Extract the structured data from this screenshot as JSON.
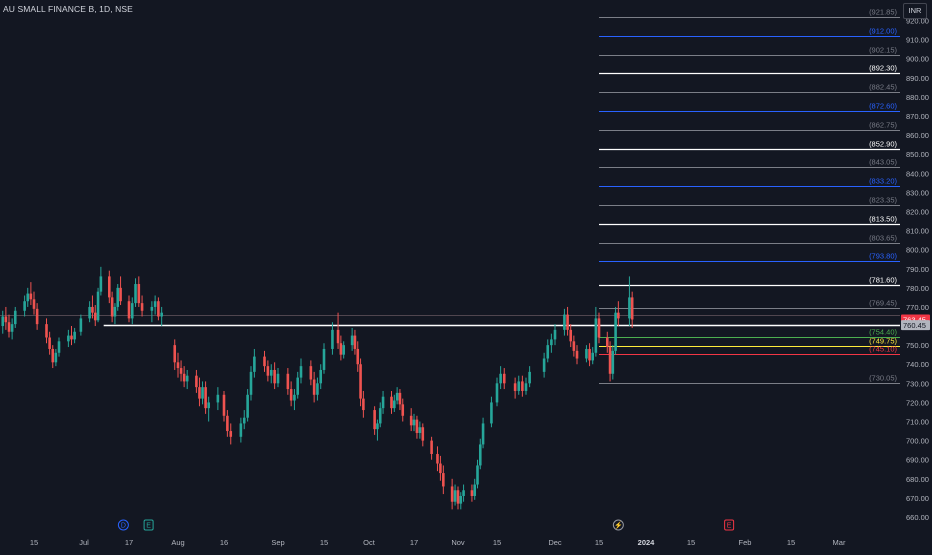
{
  "header": {
    "symbol_title": "AU SMALL FINANCE B, 1D, NSE",
    "currency": "INR"
  },
  "colors": {
    "background": "#131722",
    "up": "#26a69a",
    "down": "#ef5350",
    "axis_text": "#b2b5be",
    "grid_label": "#787b86",
    "gray_level": "#9598a1",
    "white_level": "#ffffff",
    "blue_level": "#2962ff",
    "green_level": "#4caf50",
    "yellow_level": "#ffeb3b",
    "red_level": "#f23645",
    "price_tag": "#f23645",
    "crosshair_tag": "#b2b5be"
  },
  "chart_data": {
    "type": "candlestick",
    "ylim": [
      654,
      927
    ],
    "y_ticks": [
      660,
      670,
      680,
      690,
      700,
      710,
      720,
      730,
      740,
      750,
      760,
      770,
      780,
      790,
      800,
      810,
      820,
      830,
      840,
      850,
      860,
      870,
      880,
      890,
      900,
      910,
      920
    ],
    "x_ticks": [
      "15",
      "Jul",
      "17",
      "Aug",
      "16",
      "Sep",
      "15",
      "Oct",
      "17",
      "Nov",
      "15",
      "Dec",
      "15",
      "2024",
      "15",
      "Feb",
      "15",
      "Mar"
    ],
    "x_ticks_bold": [
      "2024"
    ],
    "event_markers": [
      {
        "label": "D",
        "date": "2023-07-15"
      },
      {
        "label": "E",
        "date": "2023-07-23"
      },
      {
        "label": "⚡",
        "date": "2023-12-22"
      },
      {
        "label": "E",
        "date": "2024-01-27"
      }
    ],
    "last_price": 763.45,
    "crosshair_price": 760.45,
    "levels": [
      {
        "price": 921.85,
        "style": "gray"
      },
      {
        "price": 912.0,
        "style": "blue"
      },
      {
        "price": 902.15,
        "style": "gray"
      },
      {
        "price": 892.3,
        "style": "white"
      },
      {
        "price": 882.45,
        "style": "gray"
      },
      {
        "price": 872.6,
        "style": "blue"
      },
      {
        "price": 862.75,
        "style": "gray"
      },
      {
        "price": 852.9,
        "style": "white"
      },
      {
        "price": 843.05,
        "style": "gray"
      },
      {
        "price": 833.2,
        "style": "blue"
      },
      {
        "price": 823.35,
        "style": "gray"
      },
      {
        "price": 813.5,
        "style": "white"
      },
      {
        "price": 803.65,
        "style": "gray"
      },
      {
        "price": 793.8,
        "style": "blue"
      },
      {
        "price": 781.6,
        "style": "white"
      },
      {
        "price": 769.45,
        "style": "gray"
      },
      {
        "price": 754.4,
        "style": "green"
      },
      {
        "price": 749.75,
        "style": "yellow"
      },
      {
        "price": 745.1,
        "style": "red"
      },
      {
        "price": 730.05,
        "style": "gray"
      }
    ],
    "support_line": {
      "price": 760.45,
      "from_date": "2023-07-08"
    },
    "faint_line": {
      "price": 765.8
    },
    "candles": [
      [
        "2023-06-01",
        751,
        757,
        748,
        755
      ],
      [
        "2023-06-02",
        755,
        763,
        752,
        760
      ],
      [
        "2023-06-05",
        760,
        768,
        756,
        765
      ],
      [
        "2023-06-06",
        765,
        770,
        758,
        762
      ],
      [
        "2023-06-07",
        762,
        766,
        754,
        757
      ],
      [
        "2023-06-08",
        757,
        764,
        753,
        761
      ],
      [
        "2023-06-09",
        761,
        770,
        759,
        768
      ],
      [
        "2023-06-12",
        768,
        776,
        765,
        773
      ],
      [
        "2023-06-13",
        773,
        780,
        770,
        777
      ],
      [
        "2023-06-14",
        777,
        783,
        771,
        774
      ],
      [
        "2023-06-15",
        774,
        778,
        766,
        769
      ],
      [
        "2023-06-16",
        769,
        772,
        758,
        761
      ],
      [
        "2023-06-19",
        761,
        764,
        751,
        754
      ],
      [
        "2023-06-20",
        754,
        757,
        745,
        748
      ],
      [
        "2023-06-21",
        748,
        750,
        738,
        741
      ],
      [
        "2023-06-22",
        741,
        748,
        739,
        746
      ],
      [
        "2023-06-23",
        746,
        754,
        744,
        752
      ],
      [
        "2023-06-26",
        752,
        758,
        749,
        755
      ],
      [
        "2023-06-27",
        755,
        760,
        750,
        753
      ],
      [
        "2023-06-28",
        753,
        759,
        751,
        757
      ],
      [
        "2023-06-30",
        757,
        766,
        755,
        764
      ],
      [
        "2023-07-03",
        764,
        773,
        762,
        770
      ],
      [
        "2023-07-04",
        770,
        776,
        764,
        767
      ],
      [
        "2023-07-05",
        767,
        771,
        760,
        763
      ],
      [
        "2023-07-06",
        763,
        780,
        762,
        778
      ],
      [
        "2023-07-07",
        778,
        791,
        776,
        786
      ],
      [
        "2023-07-10",
        786,
        789,
        772,
        775
      ],
      [
        "2023-07-11",
        775,
        778,
        762,
        765
      ],
      [
        "2023-07-12",
        765,
        772,
        761,
        770
      ],
      [
        "2023-07-13",
        770,
        782,
        768,
        780
      ],
      [
        "2023-07-14",
        780,
        786,
        771,
        773
      ],
      [
        "2023-07-17",
        773,
        776,
        762,
        764
      ],
      [
        "2023-07-18",
        764,
        775,
        761,
        772
      ],
      [
        "2023-07-19",
        772,
        785,
        770,
        782
      ],
      [
        "2023-07-20",
        782,
        786,
        770,
        772
      ],
      [
        "2023-07-21",
        772,
        776,
        765,
        768
      ],
      [
        "2023-07-24",
        768,
        773,
        762,
        770
      ],
      [
        "2023-07-25",
        770,
        776,
        766,
        773
      ],
      [
        "2023-07-26",
        773,
        775,
        763,
        765
      ],
      [
        "2023-07-27",
        765,
        770,
        760,
        767
      ],
      [
        "2023-07-31",
        750,
        753,
        737,
        741
      ],
      [
        "2023-08-01",
        741,
        746,
        733,
        738
      ],
      [
        "2023-08-02",
        738,
        742,
        731,
        735
      ],
      [
        "2023-08-03",
        735,
        739,
        728,
        731
      ],
      [
        "2023-08-04",
        731,
        737,
        727,
        734
      ],
      [
        "2023-08-07",
        734,
        737,
        725,
        728
      ],
      [
        "2023-08-08",
        728,
        733,
        718,
        722
      ],
      [
        "2023-08-09",
        722,
        731,
        719,
        728
      ],
      [
        "2023-08-10",
        728,
        731,
        714,
        717
      ],
      [
        "2023-08-11",
        717,
        723,
        710,
        720
      ],
      [
        "2023-08-14",
        720,
        728,
        716,
        724
      ],
      [
        "2023-08-16",
        724,
        726,
        710,
        713
      ],
      [
        "2023-08-17",
        713,
        716,
        702,
        705
      ],
      [
        "2023-08-18",
        705,
        709,
        698,
        702
      ],
      [
        "2023-08-21",
        702,
        712,
        699,
        709
      ],
      [
        "2023-08-22",
        709,
        716,
        706,
        712
      ],
      [
        "2023-08-23",
        712,
        727,
        710,
        724
      ],
      [
        "2023-08-24",
        724,
        739,
        721,
        736
      ],
      [
        "2023-08-25",
        736,
        748,
        733,
        744
      ],
      [
        "2023-08-28",
        744,
        747,
        736,
        739
      ],
      [
        "2023-08-29",
        739,
        742,
        731,
        734
      ],
      [
        "2023-08-30",
        734,
        740,
        730,
        737
      ],
      [
        "2023-08-31",
        737,
        741,
        727,
        730
      ],
      [
        "2023-09-01",
        730,
        738,
        728,
        735
      ],
      [
        "2023-09-04",
        735,
        738,
        724,
        727
      ],
      [
        "2023-09-05",
        727,
        731,
        718,
        721
      ],
      [
        "2023-09-06",
        721,
        727,
        716,
        724
      ],
      [
        "2023-09-07",
        724,
        736,
        722,
        733
      ],
      [
        "2023-09-08",
        733,
        743,
        730,
        739
      ],
      [
        "2023-09-11",
        739,
        742,
        729,
        732
      ],
      [
        "2023-09-12",
        732,
        736,
        720,
        724
      ],
      [
        "2023-09-13",
        724,
        733,
        721,
        730
      ],
      [
        "2023-09-14",
        730,
        740,
        727,
        737
      ],
      [
        "2023-09-15",
        737,
        751,
        735,
        748
      ],
      [
        "2023-09-18",
        748,
        762,
        745,
        758
      ],
      [
        "2023-09-20",
        758,
        767,
        748,
        751
      ],
      [
        "2023-09-21",
        751,
        755,
        742,
        745
      ],
      [
        "2023-09-22",
        745,
        752,
        743,
        750
      ],
      [
        "2023-09-25",
        750,
        759,
        747,
        755
      ],
      [
        "2023-09-26",
        755,
        758,
        745,
        748
      ],
      [
        "2023-09-27",
        748,
        752,
        736,
        740
      ],
      [
        "2023-09-28",
        740,
        743,
        718,
        722
      ],
      [
        "2023-09-29",
        722,
        726,
        712,
        716
      ],
      [
        "2023-10-03",
        716,
        718,
        703,
        706
      ],
      [
        "2023-10-04",
        706,
        711,
        700,
        709
      ],
      [
        "2023-10-05",
        709,
        720,
        707,
        717
      ],
      [
        "2023-10-06",
        717,
        726,
        714,
        723
      ],
      [
        "2023-10-09",
        723,
        726,
        714,
        717
      ],
      [
        "2023-10-10",
        717,
        724,
        715,
        721
      ],
      [
        "2023-10-11",
        721,
        728,
        719,
        725
      ],
      [
        "2023-10-12",
        725,
        727,
        716,
        719
      ],
      [
        "2023-10-13",
        719,
        722,
        710,
        713
      ],
      [
        "2023-10-16",
        713,
        717,
        705,
        708
      ],
      [
        "2023-10-17",
        708,
        714,
        705,
        711
      ],
      [
        "2023-10-18",
        711,
        713,
        701,
        704
      ],
      [
        "2023-10-19",
        704,
        710,
        701,
        707
      ],
      [
        "2023-10-20",
        707,
        709,
        697,
        700
      ],
      [
        "2023-10-23",
        700,
        702,
        690,
        693
      ],
      [
        "2023-10-25",
        693,
        697,
        684,
        688
      ],
      [
        "2023-10-26",
        688,
        692,
        679,
        683
      ],
      [
        "2023-10-27",
        683,
        687,
        672,
        676
      ],
      [
        "2023-10-30",
        676,
        680,
        664,
        668
      ],
      [
        "2023-10-31",
        668,
        677,
        666,
        674
      ],
      [
        "2023-11-01",
        674,
        676,
        664,
        667
      ],
      [
        "2023-11-02",
        667,
        673,
        664,
        671
      ],
      [
        "2023-11-03",
        671,
        677,
        668,
        674
      ],
      [
        "2023-11-06",
        674,
        677,
        668,
        671
      ],
      [
        "2023-11-07",
        671,
        680,
        669,
        677
      ],
      [
        "2023-11-08",
        677,
        690,
        675,
        687
      ],
      [
        "2023-11-09",
        687,
        701,
        685,
        698
      ],
      [
        "2023-11-10",
        698,
        712,
        696,
        709
      ],
      [
        "2023-11-13",
        709,
        723,
        707,
        720
      ],
      [
        "2023-11-15",
        720,
        733,
        718,
        730
      ],
      [
        "2023-11-16",
        730,
        739,
        727,
        735
      ],
      [
        "2023-11-17",
        735,
        738,
        727,
        730
      ],
      [
        "2023-11-20",
        730,
        733,
        722,
        726
      ],
      [
        "2023-11-21",
        726,
        734,
        724,
        731
      ],
      [
        "2023-11-22",
        731,
        734,
        723,
        726
      ],
      [
        "2023-11-23",
        726,
        733,
        724,
        730
      ],
      [
        "2023-11-24",
        730,
        739,
        728,
        736
      ],
      [
        "2023-11-28",
        736,
        746,
        733,
        743
      ],
      [
        "2023-11-29",
        743,
        753,
        741,
        750
      ],
      [
        "2023-11-30",
        750,
        756,
        746,
        753
      ],
      [
        "2023-12-01",
        753,
        761,
        750,
        758
      ],
      [
        "2023-12-04",
        758,
        769,
        755,
        766
      ],
      [
        "2023-12-05",
        766,
        770,
        755,
        758
      ],
      [
        "2023-12-06",
        758,
        761,
        749,
        752
      ],
      [
        "2023-12-07",
        752,
        755,
        744,
        747
      ],
      [
        "2023-12-08",
        747,
        750,
        740,
        743
      ],
      [
        "2023-12-11",
        743,
        750,
        741,
        748
      ],
      [
        "2023-12-12",
        748,
        751,
        739,
        742
      ],
      [
        "2023-12-13",
        742,
        749,
        740,
        746
      ],
      [
        "2023-12-14",
        746,
        770,
        744,
        764
      ],
      [
        "2023-12-15",
        764,
        767,
        751,
        754
      ],
      [
        "2023-12-18",
        754,
        757,
        746,
        749
      ],
      [
        "2023-12-19",
        749,
        752,
        731,
        735
      ],
      [
        "2023-12-20",
        735,
        750,
        732,
        747
      ],
      [
        "2023-12-21",
        747,
        770,
        745,
        767
      ],
      [
        "2023-12-22",
        767,
        773,
        760,
        764
      ],
      [
        "2023-12-26",
        764,
        786,
        760,
        775
      ],
      [
        "2023-12-27",
        775,
        778,
        759,
        763.45
      ]
    ]
  }
}
